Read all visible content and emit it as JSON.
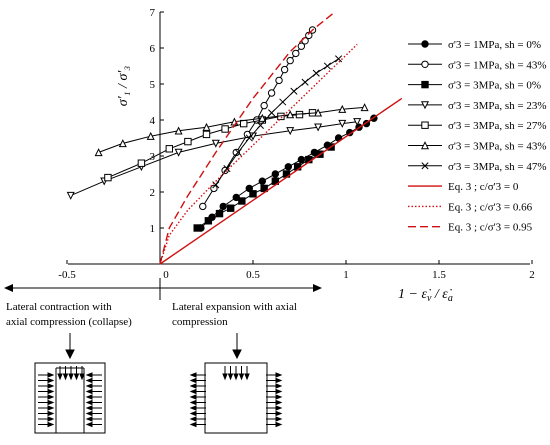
{
  "chart_data": {
    "type": "line",
    "xlabel": "1 − ε̇v / ε̇a",
    "ylabel": "σ'1 / σ'3",
    "xlim": [
      -0.5,
      2
    ],
    "ylim": [
      0,
      7
    ],
    "x_ticks": [
      "-0.5",
      "0",
      "0.5",
      "1",
      "1.5",
      "2"
    ],
    "y_ticks": [
      "1",
      "2",
      "3",
      "4",
      "5",
      "6",
      "7"
    ],
    "legend_position": "right",
    "series": [
      {
        "name": "σ'3 = 1MPa, sh = 0%",
        "marker": "filled-circle",
        "line": "solid",
        "color": "#000000",
        "x": [
          0.22,
          0.28,
          0.34,
          0.41,
          0.48,
          0.55,
          0.62,
          0.69,
          0.76,
          0.83,
          0.9,
          0.96,
          1.02,
          1.07,
          1.11,
          1.15
        ],
        "y": [
          1.0,
          1.3,
          1.6,
          1.85,
          2.1,
          2.3,
          2.5,
          2.7,
          2.9,
          3.1,
          3.3,
          3.5,
          3.65,
          3.8,
          3.9,
          4.05
        ]
      },
      {
        "name": "σ'3 = 1MPa, sh = 43%",
        "marker": "open-circle",
        "line": "solid",
        "color": "#000000",
        "x": [
          0.23,
          0.29,
          0.35,
          0.41,
          0.47,
          0.52,
          0.56,
          0.6,
          0.64,
          0.67,
          0.7,
          0.73,
          0.76,
          0.78,
          0.8,
          0.82
        ],
        "y": [
          1.6,
          2.1,
          2.6,
          3.1,
          3.6,
          4.0,
          4.4,
          4.75,
          5.1,
          5.4,
          5.65,
          5.85,
          6.05,
          6.2,
          6.35,
          6.5
        ]
      },
      {
        "name": "σ'3 = 3MPa, sh = 0%",
        "marker": "filled-square",
        "line": "solid",
        "color": "#000000",
        "x": [
          0.2,
          0.26,
          0.32,
          0.38,
          0.44,
          0.5,
          0.56,
          0.62,
          0.68,
          0.74,
          0.8,
          0.86,
          0.92
        ],
        "y": [
          1.0,
          1.2,
          1.4,
          1.55,
          1.75,
          1.95,
          2.1,
          2.3,
          2.5,
          2.7,
          2.9,
          3.05,
          3.25
        ]
      },
      {
        "name": "σ'3 = 3MPa, sh = 23%",
        "marker": "open-triangle-down",
        "line": "solid",
        "color": "#000000",
        "x": [
          -0.48,
          -0.3,
          -0.1,
          0.1,
          0.3,
          0.5,
          0.7,
          0.85,
          0.98,
          1.06
        ],
        "y": [
          1.9,
          2.3,
          2.7,
          3.1,
          3.35,
          3.55,
          3.7,
          3.8,
          3.9,
          3.95
        ]
      },
      {
        "name": "σ'3 = 3MPa, sh = 27%",
        "marker": "open-square",
        "line": "solid",
        "color": "#000000",
        "x": [
          -0.28,
          -0.1,
          0.05,
          0.15,
          0.25,
          0.35,
          0.45,
          0.55,
          0.65,
          0.75,
          0.82
        ],
        "y": [
          2.4,
          2.8,
          3.2,
          3.4,
          3.6,
          3.75,
          3.9,
          4.0,
          4.1,
          4.15,
          4.2
        ]
      },
      {
        "name": "σ'3 = 3MPa, sh = 43%",
        "marker": "open-triangle-up",
        "line": "solid",
        "color": "#000000",
        "x": [
          -0.33,
          -0.2,
          -0.05,
          0.1,
          0.25,
          0.4,
          0.55,
          0.7,
          0.85,
          0.98,
          1.1
        ],
        "y": [
          3.1,
          3.35,
          3.55,
          3.7,
          3.8,
          3.95,
          4.05,
          4.15,
          4.2,
          4.3,
          4.35
        ]
      },
      {
        "name": "σ'3 = 3MPa, sh = 47%",
        "marker": "cross",
        "line": "solid",
        "color": "#000000",
        "x": [
          0.3,
          0.36,
          0.42,
          0.48,
          0.54,
          0.6,
          0.66,
          0.72,
          0.78,
          0.84,
          0.9,
          0.96
        ],
        "y": [
          2.2,
          2.65,
          3.1,
          3.5,
          3.85,
          4.2,
          4.5,
          4.8,
          5.05,
          5.3,
          5.5,
          5.7
        ]
      },
      {
        "name": "Eq. 3 ; c/σ'3 = 0",
        "marker": "none",
        "line": "solid",
        "color": "#d01010",
        "x": [
          0,
          1.3
        ],
        "y": [
          0,
          4.6
        ]
      },
      {
        "name": "Eq. 3 ; c/σ'3 = 0.66",
        "marker": "none",
        "line": "dotted",
        "color": "#d01010",
        "x": [
          0,
          0.05,
          0.15,
          0.3,
          0.5,
          0.7,
          0.9,
          1.06
        ],
        "y": [
          0,
          0.8,
          1.5,
          2.3,
          3.3,
          4.3,
          5.3,
          6.1
        ]
      },
      {
        "name": "Eq. 3 ; c/σ'3 = 0.95",
        "marker": "none",
        "line": "dashed",
        "color": "#d01010",
        "x": [
          0,
          0.05,
          0.15,
          0.3,
          0.5,
          0.7,
          0.82,
          0.94
        ],
        "y": [
          0,
          1.0,
          1.9,
          3.1,
          4.6,
          5.9,
          6.5,
          7.0
        ]
      }
    ]
  },
  "legend": {
    "items": [
      {
        "label": "σ'3 = 1MPa, sh = 0%"
      },
      {
        "label": "σ'3 = 1MPa, sh = 43%"
      },
      {
        "label": "σ'3 = 3MPa, sh = 0%"
      },
      {
        "label": "σ'3 = 3MPa, sh = 23%"
      },
      {
        "label": "σ'3 = 3MPa, sh = 27%"
      },
      {
        "label": "σ'3 = 3MPa, sh = 43%"
      },
      {
        "label": "σ'3 = 3MPa, sh = 47%"
      },
      {
        "label": "Eq. 3 ; c/σ'3 = 0"
      },
      {
        "label": "Eq. 3 ; c/σ'3 = 0.66"
      },
      {
        "label": "Eq. 3 ; c/σ'3 = 0.95"
      }
    ]
  },
  "annotations": {
    "left_text_line1": "Lateral contraction with",
    "left_text_line2": "axial compression (collapse)",
    "right_text_line1": "Lateral expansion with axial",
    "right_text_line2": "compression"
  },
  "colors": {
    "model": "#d01010",
    "data": "#000000"
  }
}
